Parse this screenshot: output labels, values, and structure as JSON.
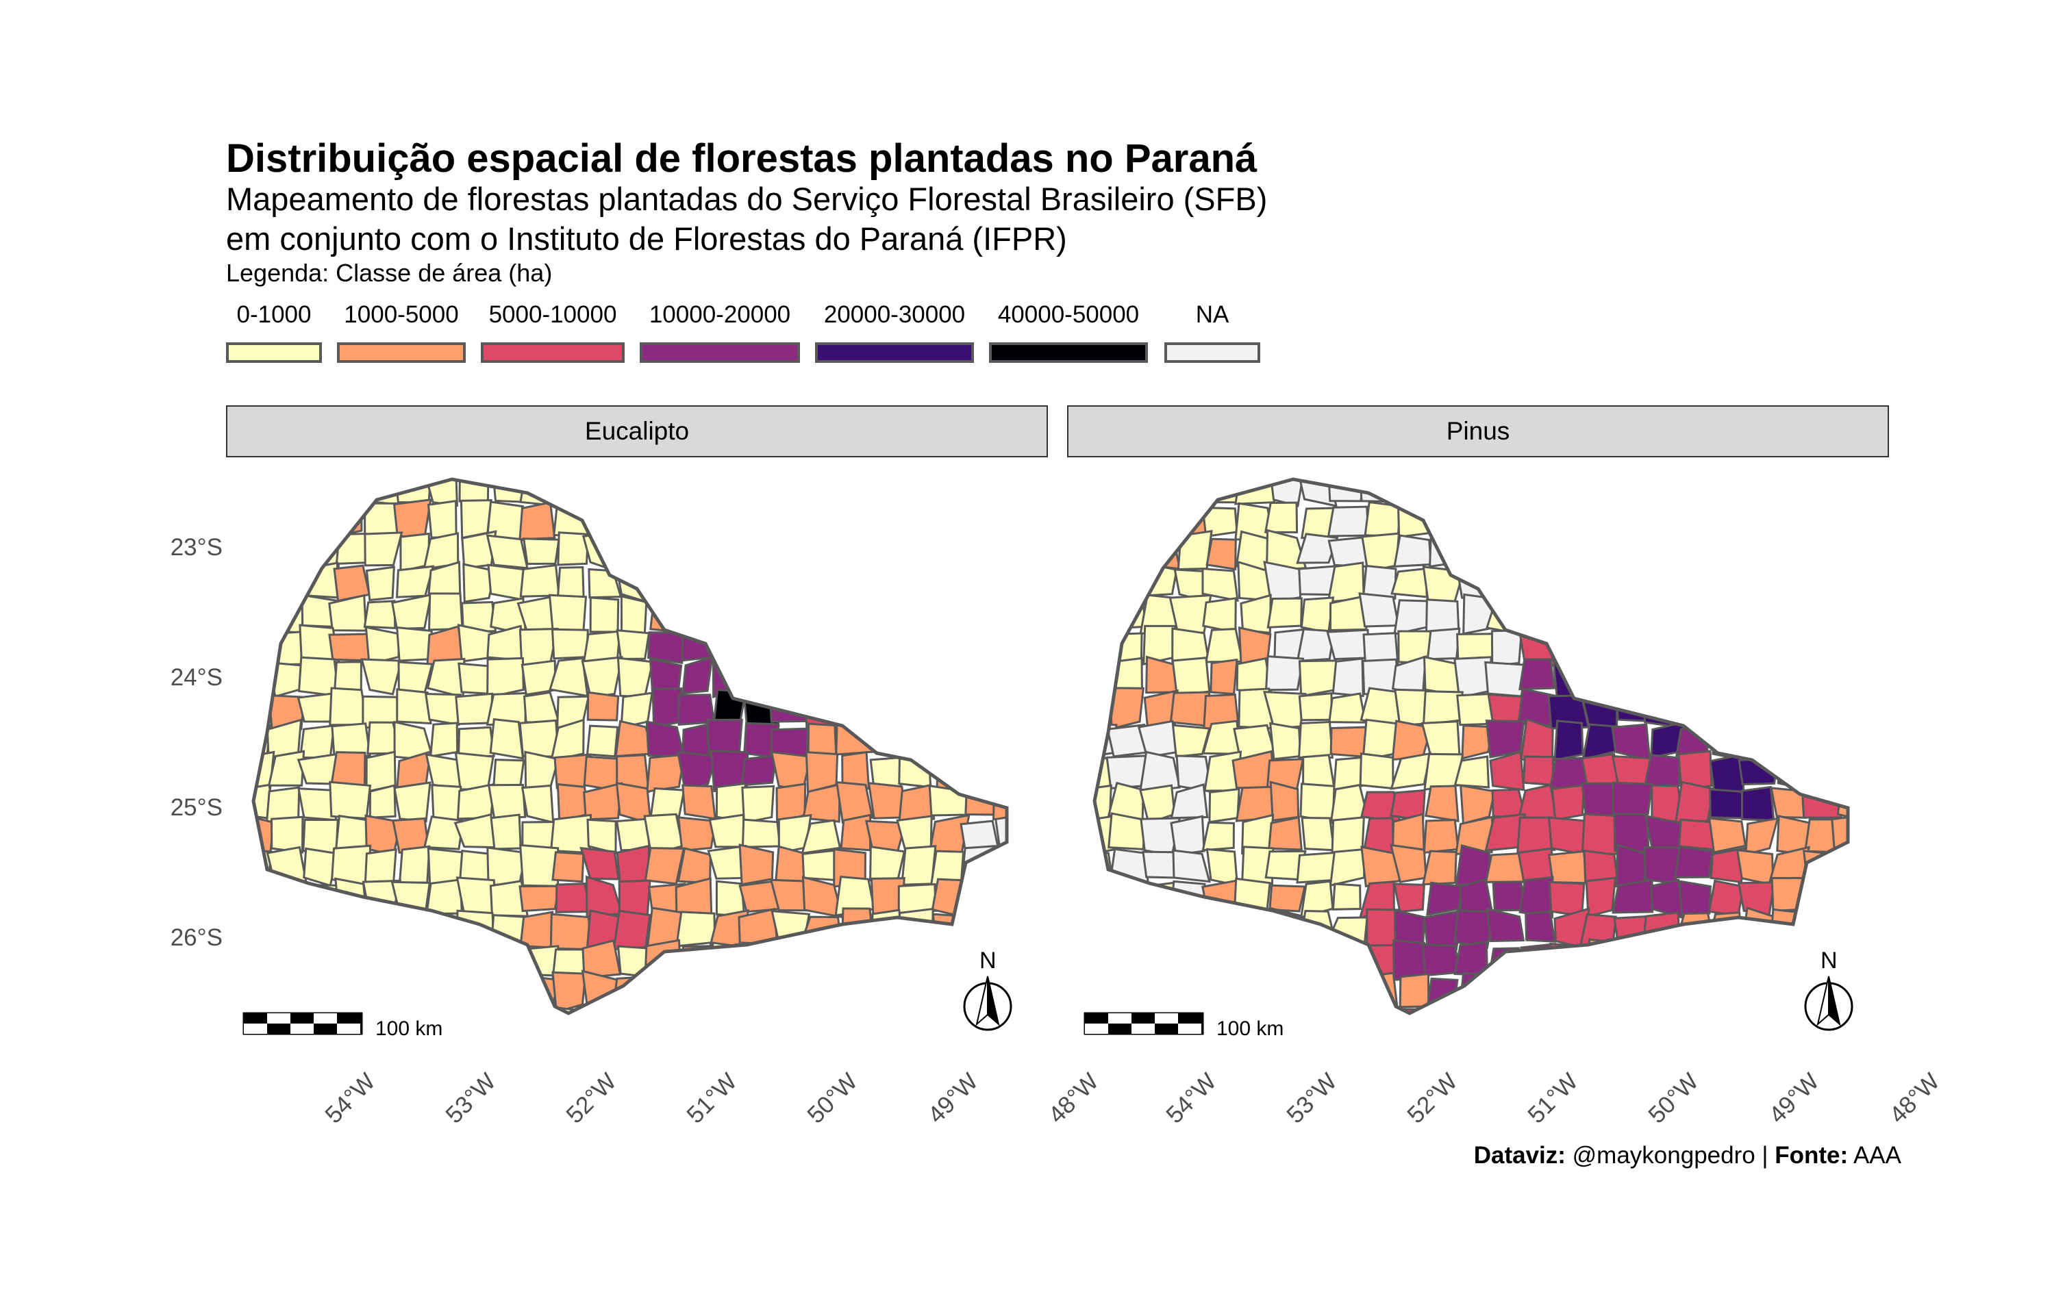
{
  "title": "Distribuição espacial de florestas plantadas no Paraná",
  "subtitle_line1": "Mapeamento de florestas plantadas do Serviço Florestal Brasileiro (SFB)",
  "subtitle_line2": "em conjunto com o Instituto de Florestas do Paraná (IFPR)",
  "legend": {
    "title": "Legenda: Classe de área (ha)",
    "items": [
      {
        "label": "0-1000",
        "color": "#fcfdbf"
      },
      {
        "label": "1000-5000",
        "color": "#fe9f6d"
      },
      {
        "label": "5000-10000",
        "color": "#de4968"
      },
      {
        "label": "10000-20000",
        "color": "#8c2981"
      },
      {
        "label": "20000-30000",
        "color": "#3b0f70"
      },
      {
        "label": "40000-50000",
        "color": "#000004"
      },
      {
        "label": "NA",
        "color": "#f2f2f2"
      }
    ]
  },
  "panels": [
    {
      "label": "Eucalipto",
      "scale_label": "100 km",
      "north_label": "N"
    },
    {
      "label": "Pinus",
      "scale_label": "100 km",
      "north_label": "N"
    }
  ],
  "axes": {
    "y_ticks": [
      "23°S",
      "24°S",
      "25°S",
      "26°S"
    ],
    "x_ticks": [
      "54°W",
      "53°W",
      "52°W",
      "51°W",
      "50°W",
      "49°W",
      "48°W"
    ]
  },
  "caption": {
    "dataviz_label": "Dataviz:",
    "dataviz_value": " @maykongpedro | ",
    "source_label": "Fonte:",
    "source_value": " AAA"
  },
  "colors": {
    "outline": "#595959",
    "strip_bg": "#d9d9d9"
  }
}
